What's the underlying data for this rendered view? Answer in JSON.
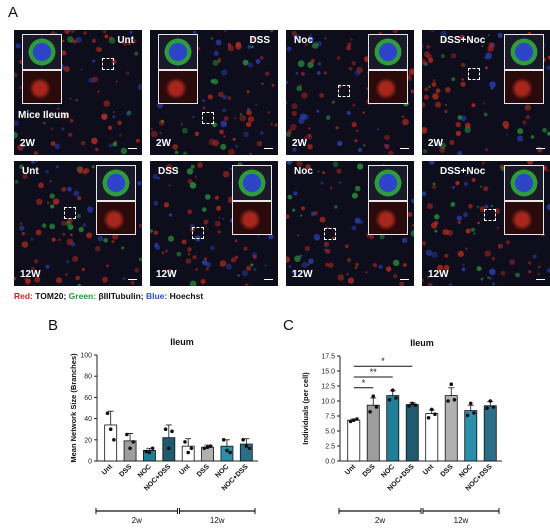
{
  "panel_labels": {
    "a": "A",
    "b": "B",
    "c": "C"
  },
  "microscopy": {
    "tiles": [
      {
        "label": "Unt",
        "time": "2W",
        "extra": "Mice Ileum"
      },
      {
        "label": "DSS",
        "time": "2W"
      },
      {
        "label": "Noc",
        "time": "2W"
      },
      {
        "label": "DSS+Noc",
        "time": "2W"
      },
      {
        "label": "Unt",
        "time": "12W"
      },
      {
        "label": "DSS",
        "time": "12W"
      },
      {
        "label": "Noc",
        "time": "12W"
      },
      {
        "label": "DSS+Noc",
        "time": "12W"
      }
    ],
    "stain_legend": {
      "red_key": "Red:",
      "red_val": "TOM20;",
      "green_key": "Green:",
      "green_val": "βIIITubulin;",
      "blue_key": "Blue:",
      "blue_val": "Hoechst"
    },
    "colors": {
      "red": "#c8281e",
      "green": "#1f9a3a",
      "blue": "#2d4fd6"
    }
  },
  "chart_data": [
    {
      "type": "bar",
      "title": "Ileum",
      "ylabel": "Mean Network Size (Branches)",
      "ylim": [
        0,
        100
      ],
      "yticks": [
        "0",
        "20",
        "40",
        "60",
        "80",
        "100"
      ],
      "categories": [
        "Unt",
        "DSS",
        "NOC",
        "NOC+DSS",
        "Unt",
        "DSS",
        "NOC",
        "NOC+DSS"
      ],
      "values": [
        34,
        19,
        10,
        22,
        14,
        13,
        14,
        16
      ],
      "errors": [
        13,
        7,
        2,
        12,
        7,
        2,
        6,
        5
      ],
      "points": [
        [
          45,
          30,
          20
        ],
        [
          25,
          12,
          18
        ],
        [
          9,
          8,
          12
        ],
        [
          30,
          12,
          28
        ],
        [
          18,
          8,
          12
        ],
        [
          12,
          13,
          14
        ],
        [
          20,
          10,
          8
        ],
        [
          20,
          14,
          12
        ]
      ],
      "colors": [
        "#ffffff",
        "#9e9e9e",
        "#1e7f96",
        "#1f5a6e",
        "#ffffff",
        "#b0b0b0",
        "#2a8fa8",
        "#2a6f85"
      ],
      "groups": [
        "2w",
        "12w"
      ]
    },
    {
      "type": "bar",
      "title": "Ileum",
      "ylabel": "Individuals (per cell)",
      "ylim": [
        0,
        17.5
      ],
      "yticks": [
        "0.0",
        "2.5",
        "5.0",
        "7.5",
        "10.0",
        "12.5",
        "15.0",
        "17.5"
      ],
      "categories": [
        "Unt",
        "DSS",
        "NOC",
        "NOC+DSS",
        "Unt",
        "DSS",
        "NOC",
        "NOC+DSS"
      ],
      "values": [
        6.8,
        9.3,
        10.9,
        9.4,
        7.9,
        10.9,
        8.4,
        9.2
      ],
      "errors": [
        0.2,
        1.2,
        0.8,
        0.3,
        0.6,
        1.3,
        0.9,
        0.7
      ],
      "points": [
        [
          6.6,
          6.8,
          7.0
        ],
        [
          8.2,
          10.8,
          9.0
        ],
        [
          10.2,
          11.8,
          10.5
        ],
        [
          9.2,
          9.6,
          9.3
        ],
        [
          7.2,
          8.6,
          7.8
        ],
        [
          10.0,
          12.8,
          10.2
        ],
        [
          7.6,
          9.6,
          8.0
        ],
        [
          8.8,
          10.0,
          9.0
        ]
      ],
      "colors": [
        "#ffffff",
        "#9e9e9e",
        "#1e7f96",
        "#1f5a6e",
        "#ffffff",
        "#b0b0b0",
        "#2a8fa8",
        "#2a6f85"
      ],
      "groups": [
        "2w",
        "12w"
      ],
      "significance": [
        {
          "from": 0,
          "to": 1,
          "label": "*",
          "level": 12.2
        },
        {
          "from": 0,
          "to": 2,
          "label": "**",
          "level": 14.0
        },
        {
          "from": 0,
          "to": 3,
          "label": "*",
          "level": 15.8
        }
      ]
    }
  ]
}
